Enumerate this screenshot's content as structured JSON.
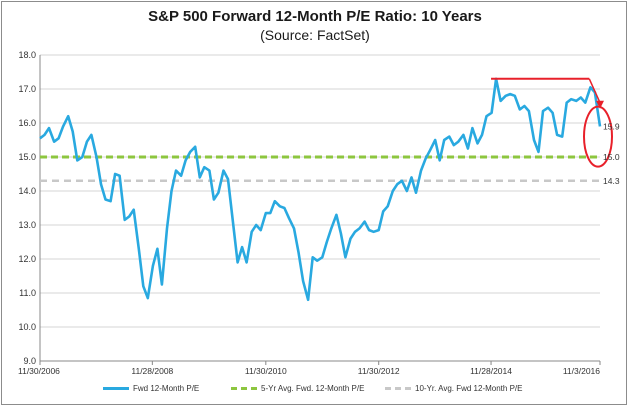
{
  "chart_data": {
    "type": "line",
    "title": "S&P 500 Forward 12-Month P/E Ratio: 10 Years",
    "subtitle": "(Source: FactSet)",
    "ylim": [
      9.0,
      18.0
    ],
    "y_ticks": [
      "9.0",
      "10.0",
      "11.0",
      "12.0",
      "13.0",
      "14.0",
      "15.0",
      "16.0",
      "17.0",
      "18.0"
    ],
    "x_tick_labels": [
      "11/30/2006",
      "11/28/2008",
      "11/30/2010",
      "11/30/2012",
      "11/28/2014",
      "11/3/2016"
    ],
    "x_range_years": [
      2006.92,
      2016.84
    ],
    "x_tick_years": [
      2006.92,
      2008.91,
      2010.92,
      2012.92,
      2014.91,
      2016.84
    ],
    "series": [
      {
        "name": "Fwd 12-Month P/E",
        "color": "#29a9e0",
        "x": [
          2006.92,
          2007.0,
          2007.08,
          2007.17,
          2007.25,
          2007.33,
          2007.42,
          2007.5,
          2007.58,
          2007.67,
          2007.75,
          2007.83,
          2007.92,
          2008.0,
          2008.08,
          2008.17,
          2008.25,
          2008.33,
          2008.42,
          2008.5,
          2008.58,
          2008.67,
          2008.75,
          2008.83,
          2008.92,
          2009.0,
          2009.08,
          2009.17,
          2009.25,
          2009.33,
          2009.42,
          2009.5,
          2009.58,
          2009.67,
          2009.75,
          2009.83,
          2009.92,
          2010.0,
          2010.08,
          2010.17,
          2010.25,
          2010.33,
          2010.42,
          2010.5,
          2010.58,
          2010.67,
          2010.75,
          2010.83,
          2010.92,
          2011.0,
          2011.08,
          2011.17,
          2011.25,
          2011.33,
          2011.42,
          2011.5,
          2011.58,
          2011.67,
          2011.75,
          2011.83,
          2011.92,
          2012.0,
          2012.08,
          2012.17,
          2012.25,
          2012.33,
          2012.42,
          2012.5,
          2012.58,
          2012.67,
          2012.75,
          2012.83,
          2012.92,
          2013.0,
          2013.08,
          2013.17,
          2013.25,
          2013.33,
          2013.42,
          2013.5,
          2013.58,
          2013.67,
          2013.75,
          2013.83,
          2013.92,
          2014.0,
          2014.08,
          2014.17,
          2014.25,
          2014.33,
          2014.42,
          2014.5,
          2014.58,
          2014.67,
          2014.75,
          2014.83,
          2014.92,
          2015.0,
          2015.08,
          2015.17,
          2015.25,
          2015.33,
          2015.42,
          2015.5,
          2015.58,
          2015.67,
          2015.75,
          2015.83,
          2015.92,
          2016.0,
          2016.08,
          2016.17,
          2016.25,
          2016.33,
          2016.42,
          2016.5,
          2016.58,
          2016.67,
          2016.75,
          2016.84
        ],
        "values": [
          15.55,
          15.65,
          15.85,
          15.45,
          15.55,
          15.9,
          16.2,
          15.75,
          14.9,
          15.0,
          15.45,
          15.65,
          15.0,
          14.2,
          13.75,
          13.7,
          14.5,
          14.45,
          13.15,
          13.25,
          13.45,
          12.3,
          11.2,
          10.85,
          11.8,
          12.3,
          11.25,
          12.9,
          14.0,
          14.6,
          14.45,
          14.9,
          15.15,
          15.3,
          14.4,
          14.7,
          14.6,
          13.75,
          13.95,
          14.6,
          14.35,
          13.2,
          11.9,
          12.35,
          11.9,
          12.8,
          13.0,
          12.85,
          13.35,
          13.35,
          13.7,
          13.55,
          13.5,
          13.2,
          12.9,
          12.2,
          11.35,
          10.8,
          12.05,
          11.95,
          12.05,
          12.5,
          12.9,
          13.3,
          12.75,
          12.05,
          12.6,
          12.8,
          12.9,
          13.1,
          12.85,
          12.8,
          12.85,
          13.4,
          13.55,
          14.0,
          14.2,
          14.3,
          14.0,
          14.4,
          13.95,
          14.6,
          14.95,
          15.2,
          15.5,
          14.9,
          15.5,
          15.6,
          15.35,
          15.45,
          15.65,
          15.25,
          15.85,
          15.4,
          15.65,
          16.2,
          16.3,
          17.3,
          16.65,
          16.8,
          16.85,
          16.8,
          16.4,
          16.5,
          16.35,
          15.5,
          15.15,
          16.35,
          16.45,
          16.3,
          15.65,
          15.6,
          16.6,
          16.7,
          16.65,
          16.75,
          16.6,
          17.05,
          16.9,
          15.9
        ]
      },
      {
        "name": "5-Yr Avg. Fwd. 12-Month P/E",
        "color": "#8dc63f",
        "dashed": true,
        "value": 15.0
      },
      {
        "name": "10-Yr. Avg. Fwd 12-Month P/E",
        "color": "#c8c8c8",
        "dashed": true,
        "value": 14.3
      }
    ],
    "end_labels": [
      "15.9",
      "15.0",
      "14.3"
    ],
    "annotations": [
      {
        "kind": "horizontal-line",
        "color": "#e8202a",
        "y": 17.3,
        "x_from": 2014.91,
        "x_to": 2016.65
      },
      {
        "kind": "arrow",
        "color": "#e8202a",
        "from": [
          2016.65,
          17.3
        ],
        "to": [
          2016.84,
          16.45
        ]
      },
      {
        "kind": "ellipse",
        "color": "#e8202a",
        "center": [
          2016.84,
          15.6
        ],
        "around_values": [
          "15.9",
          "15.0"
        ]
      }
    ],
    "grid": "horizontal",
    "legend_position": "bottom"
  }
}
